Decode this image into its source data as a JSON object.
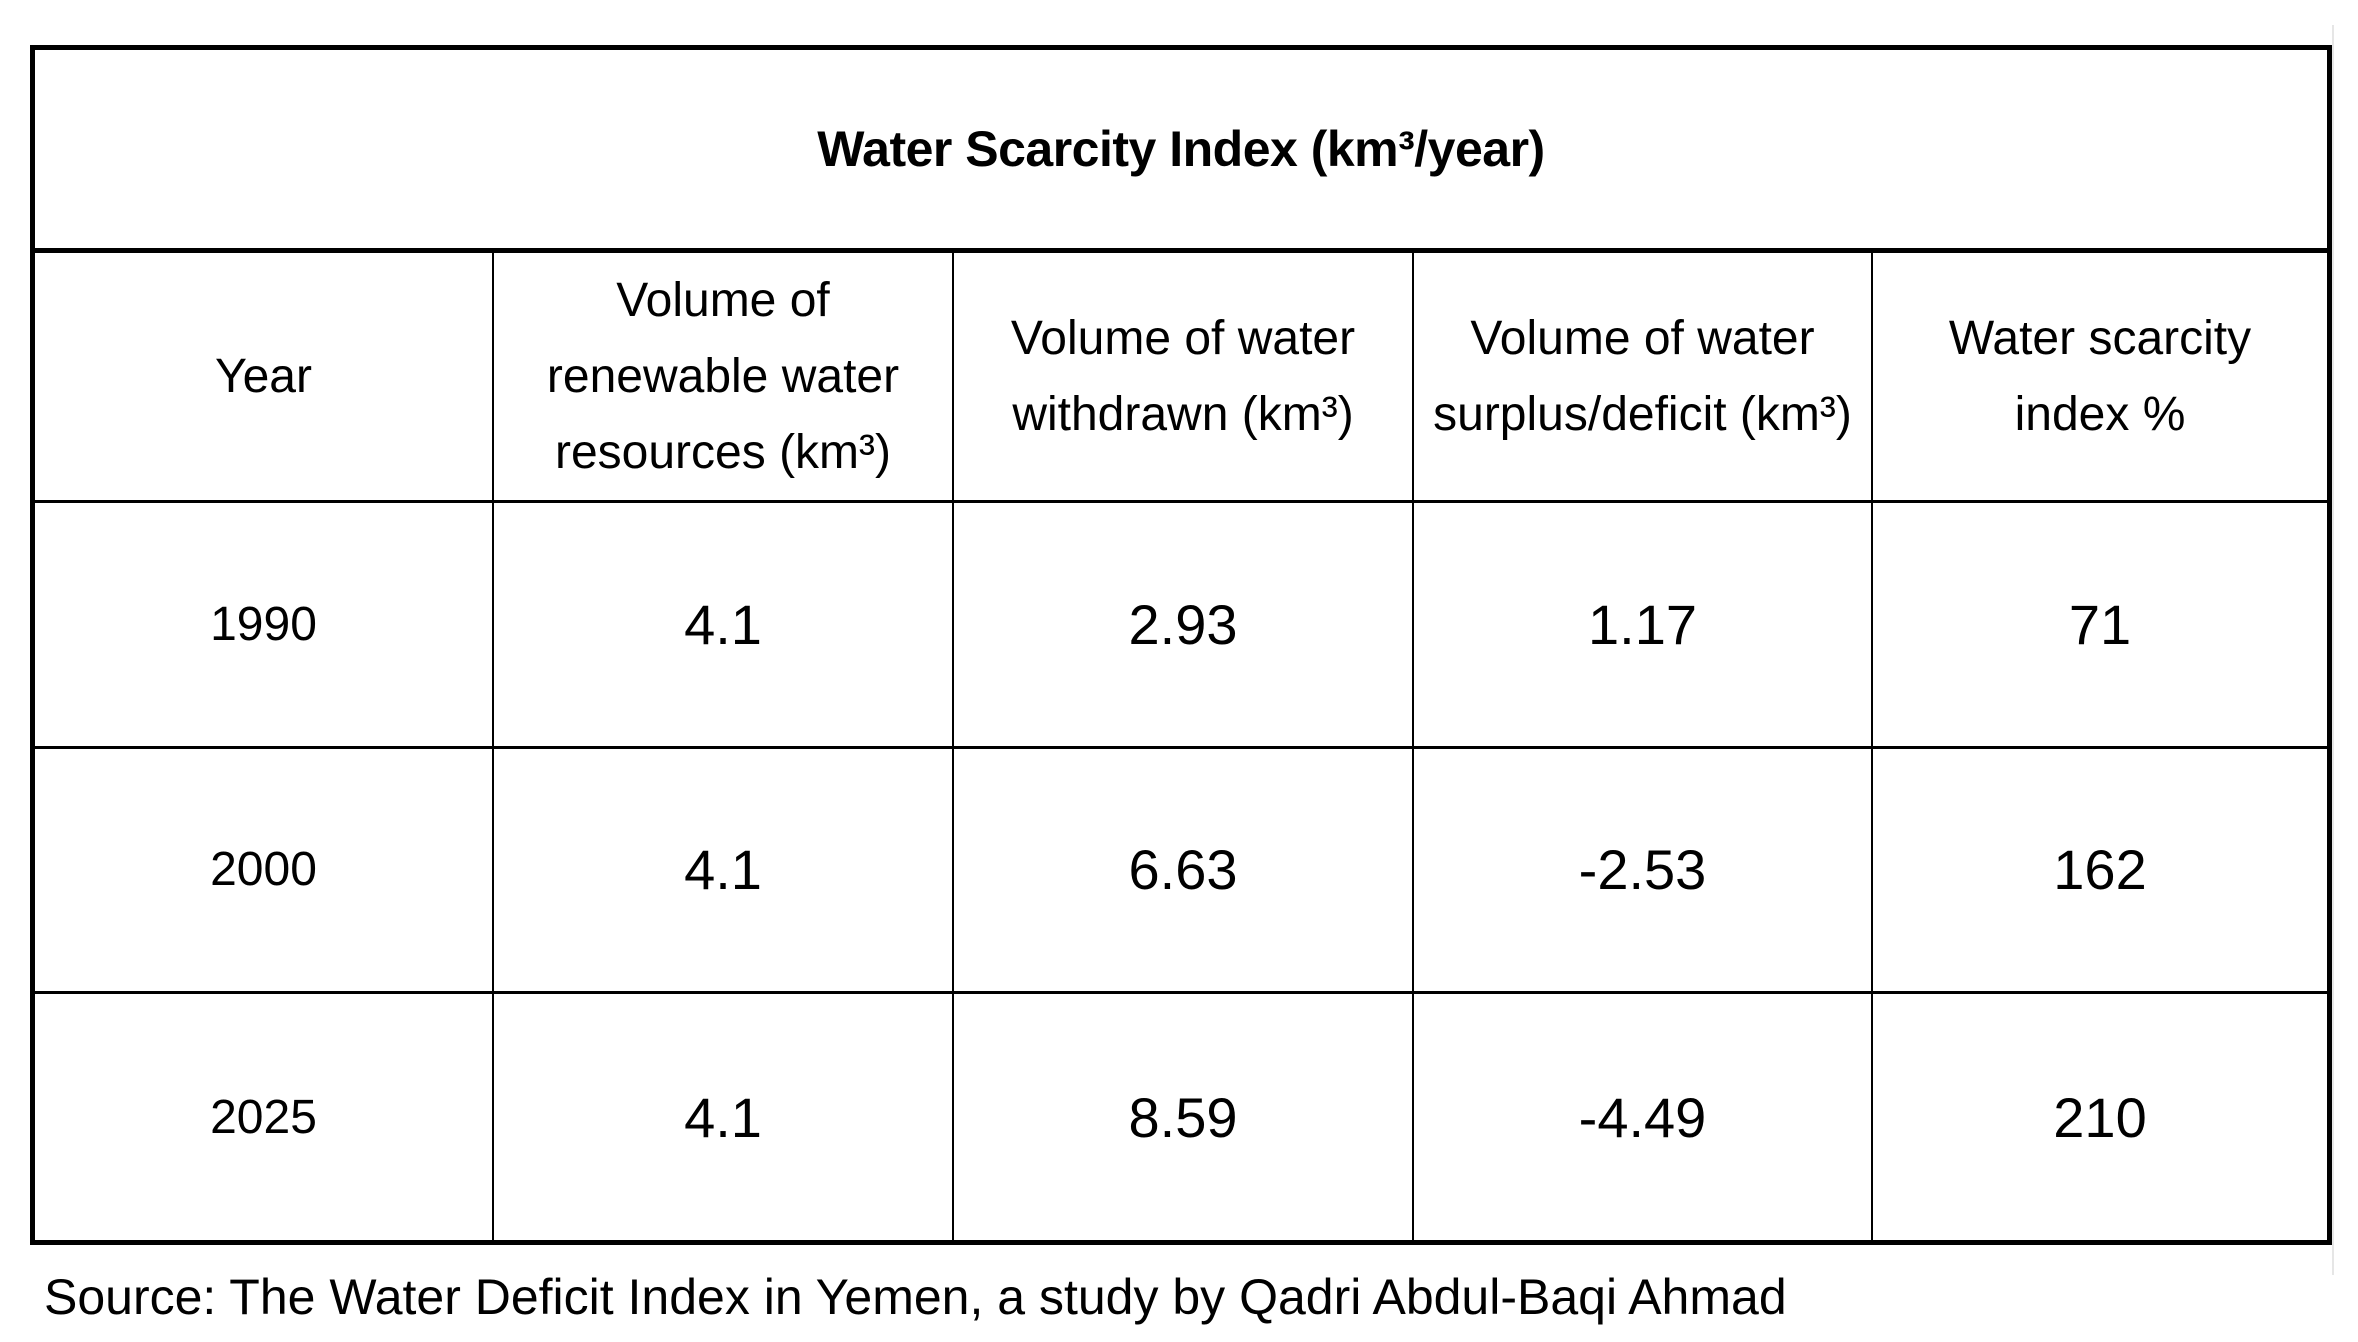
{
  "table": {
    "title": "Water Scarcity Index (km³/year)",
    "headers": [
      "Year",
      "Volume of renewable water resources (km³)",
      "Volume of water withdrawn (km³)",
      "Volume of water surplus/deficit (km³)",
      "Water scarcity index %"
    ],
    "rows": [
      [
        "1990",
        "4.1",
        "2.93",
        "1.17",
        "71"
      ],
      [
        "2000",
        "4.1",
        "6.63",
        "-2.53",
        "162"
      ],
      [
        "2025",
        "4.1",
        "8.59",
        "-4.49",
        "210"
      ]
    ]
  },
  "source": "Source: The Water Deficit Index in Yemen, a study by Qadri Abdul-Baqi Ahmad"
}
